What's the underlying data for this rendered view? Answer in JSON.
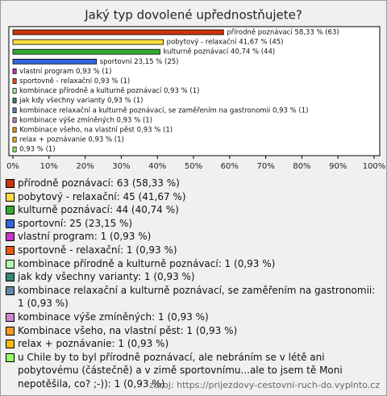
{
  "chart_data": {
    "type": "bar",
    "orientation": "horizontal",
    "title": "Jaký typ dovolené upřednostňujete?",
    "values": [
      58.33,
      41.67,
      40.74,
      23.15,
      0.93,
      0.93,
      0.93,
      0.93,
      0.93,
      0.93,
      0.93,
      0.93,
      0.93
    ],
    "value_labels": [
      "přírodně poznávací 58,33 % (63)",
      "pobytový - relaxační 41,67 % (45)",
      "kulturně poznávací 40,74 % (44)",
      "sportovní 23,15 % (25)",
      "vlastní program 0,93 % (1)",
      "sportovně - relaxační 0,93 % (1)",
      "kombinace přírodně a kulturně poznávací 0,93 % (1)",
      "jak kdy všechny varianty 0,93 % (1)",
      "kombinace relaxační a kulturně poznávací, se zaměřením na gastronomii 0,93 % (1)",
      "kombinace výše zmíněných 0,93 % (1)",
      "Kombinace všeho, na vlastní pěst 0,93 % (1)",
      "relax + poznávanie 0,93 % (1)",
      "0,93 % (1)"
    ],
    "colors": [
      "#cc3311",
      "#ffdd44",
      "#33aa33",
      "#3366dd",
      "#cc33cc",
      "#ee5511",
      "#aaffaa",
      "#338877",
      "#6688aa",
      "#cc88cc",
      "#ff9922",
      "#ffbb11",
      "#99ff66"
    ],
    "legend": [
      "přírodně poznávací: 63 (58,33 %)",
      "pobytový - relaxační: 45 (41,67 %)",
      "kulturně poznávací: 44 (40,74 %)",
      "sportovní: 25 (23,15 %)",
      "vlastní program: 1 (0,93 %)",
      "sportovně - relaxační: 1 (0,93 %)",
      "kombinace přírodně a kulturně poznávací: 1 (0,93 %)",
      "jak kdy všechny varianty: 1 (0,93 %)",
      "kombinace relaxační a kulturně poznávací, se zaměřením na gastronomii: 1 (0,93 %)",
      "kombinace výše zmíněných: 1 (0,93 %)",
      "Kombinace všeho, na vlastní pěst: 1 (0,93 %)",
      "relax + poznávanie: 1 (0,93 %)",
      "u Chile by to byl přírodně poznávací, ale nebráním se v létě ani pobytovému (částečně) a v zimě sportovnímu...ale to jsem tě Moni nepotěšila, co? ;-)): 1 (0,93 %)"
    ],
    "xlim": [
      0,
      100
    ],
    "xticks": [
      {
        "value": 0,
        "label": "0%"
      },
      {
        "value": 10,
        "label": "10%"
      },
      {
        "value": 20,
        "label": "20%"
      },
      {
        "value": 30,
        "label": "30%"
      },
      {
        "value": 40,
        "label": "40%"
      },
      {
        "value": 50,
        "label": "50%"
      },
      {
        "value": 60,
        "label": "60%"
      },
      {
        "value": 70,
        "label": "70%"
      },
      {
        "value": 80,
        "label": "80%"
      },
      {
        "value": 90,
        "label": "90%"
      },
      {
        "value": 100,
        "label": "100%"
      }
    ],
    "source": "zdroj: https://prijezdovy-cestovni-ruch-do.vyplnto.cz"
  }
}
